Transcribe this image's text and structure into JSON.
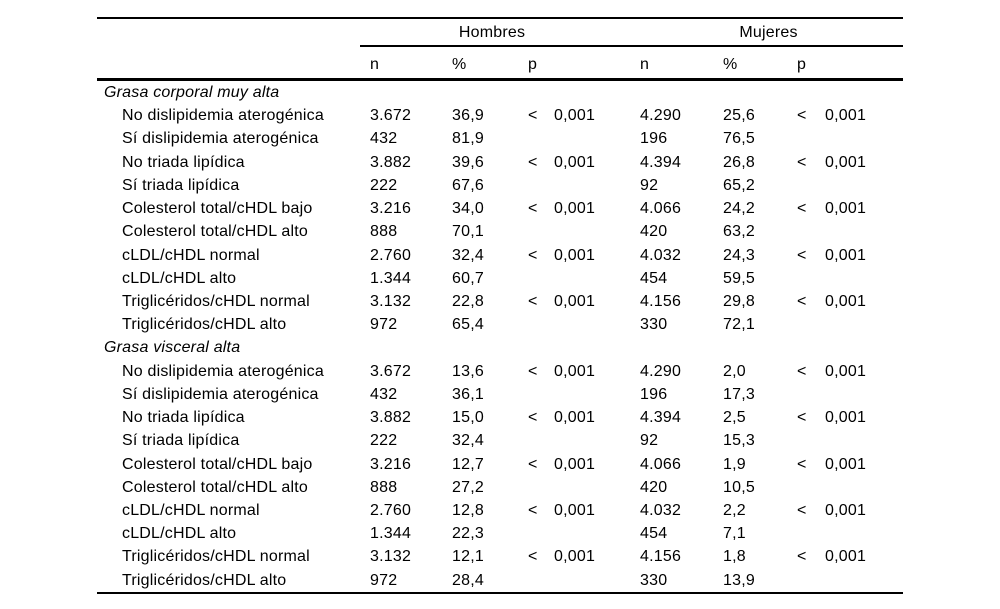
{
  "colors": {
    "background": "#ffffff",
    "text": "#000000",
    "rule": "#000000"
  },
  "header": {
    "groups": [
      "Hombres",
      "Mujeres"
    ],
    "subcols": [
      "n",
      "%",
      "p"
    ]
  },
  "sections": [
    {
      "title": "Grasa corporal muy alta",
      "rows": [
        {
          "label": "No dislipidemia aterogénica",
          "h_n": "3.672",
          "h_pct": "36,9",
          "h_sign": "<",
          "h_p": "0,001",
          "m_n": "4.290",
          "m_pct": "25,6",
          "m_sign": "<",
          "m_p": "0,001"
        },
        {
          "label": "Sí dislipidemia aterogénica",
          "h_n": "432",
          "h_pct": "81,9",
          "h_sign": "",
          "h_p": "",
          "m_n": "196",
          "m_pct": "76,5",
          "m_sign": "",
          "m_p": ""
        },
        {
          "label": "No triada lipídica",
          "h_n": "3.882",
          "h_pct": "39,6",
          "h_sign": "<",
          "h_p": "0,001",
          "m_n": "4.394",
          "m_pct": "26,8",
          "m_sign": "<",
          "m_p": "0,001"
        },
        {
          "label": "Sí triada lipídica",
          "h_n": "222",
          "h_pct": "67,6",
          "h_sign": "",
          "h_p": "",
          "m_n": "92",
          "m_pct": "65,2",
          "m_sign": "",
          "m_p": ""
        },
        {
          "label": "Colesterol total/cHDL bajo",
          "h_n": "3.216",
          "h_pct": "34,0",
          "h_sign": "<",
          "h_p": "0,001",
          "m_n": "4.066",
          "m_pct": "24,2",
          "m_sign": "<",
          "m_p": "0,001"
        },
        {
          "label": "Colesterol total/cHDL alto",
          "h_n": "888",
          "h_pct": "70,1",
          "h_sign": "",
          "h_p": "",
          "m_n": "420",
          "m_pct": "63,2",
          "m_sign": "",
          "m_p": ""
        },
        {
          "label": "cLDL/cHDL normal",
          "h_n": "2.760",
          "h_pct": "32,4",
          "h_sign": "<",
          "h_p": "0,001",
          "m_n": "4.032",
          "m_pct": "24,3",
          "m_sign": "<",
          "m_p": "0,001"
        },
        {
          "label": "cLDL/cHDL alto",
          "h_n": "1.344",
          "h_pct": "60,7",
          "h_sign": "",
          "h_p": "",
          "m_n": "454",
          "m_pct": "59,5",
          "m_sign": "",
          "m_p": ""
        },
        {
          "label": "Triglicéridos/cHDL normal",
          "h_n": "3.132",
          "h_pct": "22,8",
          "h_sign": "<",
          "h_p": "0,001",
          "m_n": "4.156",
          "m_pct": "29,8",
          "m_sign": "<",
          "m_p": "0,001"
        },
        {
          "label": "Triglicéridos/cHDL alto",
          "h_n": "972",
          "h_pct": "65,4",
          "h_sign": "",
          "h_p": "",
          "m_n": "330",
          "m_pct": "72,1",
          "m_sign": "",
          "m_p": ""
        }
      ]
    },
    {
      "title": "Grasa visceral alta",
      "rows": [
        {
          "label": "No dislipidemia aterogénica",
          "h_n": "3.672",
          "h_pct": "13,6",
          "h_sign": "<",
          "h_p": "0,001",
          "m_n": "4.290",
          "m_pct": "2,0",
          "m_sign": "<",
          "m_p": "0,001"
        },
        {
          "label": "Sí dislipidemia aterogénica",
          "h_n": "432",
          "h_pct": "36,1",
          "h_sign": "",
          "h_p": "",
          "m_n": "196",
          "m_pct": "17,3",
          "m_sign": "",
          "m_p": ""
        },
        {
          "label": "No triada lipídica",
          "h_n": "3.882",
          "h_pct": "15,0",
          "h_sign": "<",
          "h_p": "0,001",
          "m_n": "4.394",
          "m_pct": "2,5",
          "m_sign": "<",
          "m_p": "0,001"
        },
        {
          "label": "Sí triada lipídica",
          "h_n": "222",
          "h_pct": "32,4",
          "h_sign": "",
          "h_p": "",
          "m_n": "92",
          "m_pct": "15,3",
          "m_sign": "",
          "m_p": ""
        },
        {
          "label": "Colesterol total/cHDL bajo",
          "h_n": "3.216",
          "h_pct": "12,7",
          "h_sign": "<",
          "h_p": "0,001",
          "m_n": "4.066",
          "m_pct": "1,9",
          "m_sign": "<",
          "m_p": "0,001"
        },
        {
          "label": "Colesterol total/cHDL alto",
          "h_n": "888",
          "h_pct": "27,2",
          "h_sign": "",
          "h_p": "",
          "m_n": "420",
          "m_pct": "10,5",
          "m_sign": "",
          "m_p": ""
        },
        {
          "label": "cLDL/cHDL normal",
          "h_n": "2.760",
          "h_pct": "12,8",
          "h_sign": "<",
          "h_p": "0,001",
          "m_n": "4.032",
          "m_pct": "2,2",
          "m_sign": "<",
          "m_p": "0,001"
        },
        {
          "label": "cLDL/cHDL alto",
          "h_n": "1.344",
          "h_pct": "22,3",
          "h_sign": "",
          "h_p": "",
          "m_n": "454",
          "m_pct": "7,1",
          "m_sign": "",
          "m_p": ""
        },
        {
          "label": "Triglicéridos/cHDL normal",
          "h_n": "3.132",
          "h_pct": "12,1",
          "h_sign": "<",
          "h_p": "0,001",
          "m_n": "4.156",
          "m_pct": "1,8",
          "m_sign": "<",
          "m_p": "0,001"
        },
        {
          "label": "Triglicéridos/cHDL alto",
          "h_n": "972",
          "h_pct": "28,4",
          "h_sign": "",
          "h_p": "",
          "m_n": "330",
          "m_pct": "13,9",
          "m_sign": "",
          "m_p": ""
        }
      ]
    }
  ]
}
